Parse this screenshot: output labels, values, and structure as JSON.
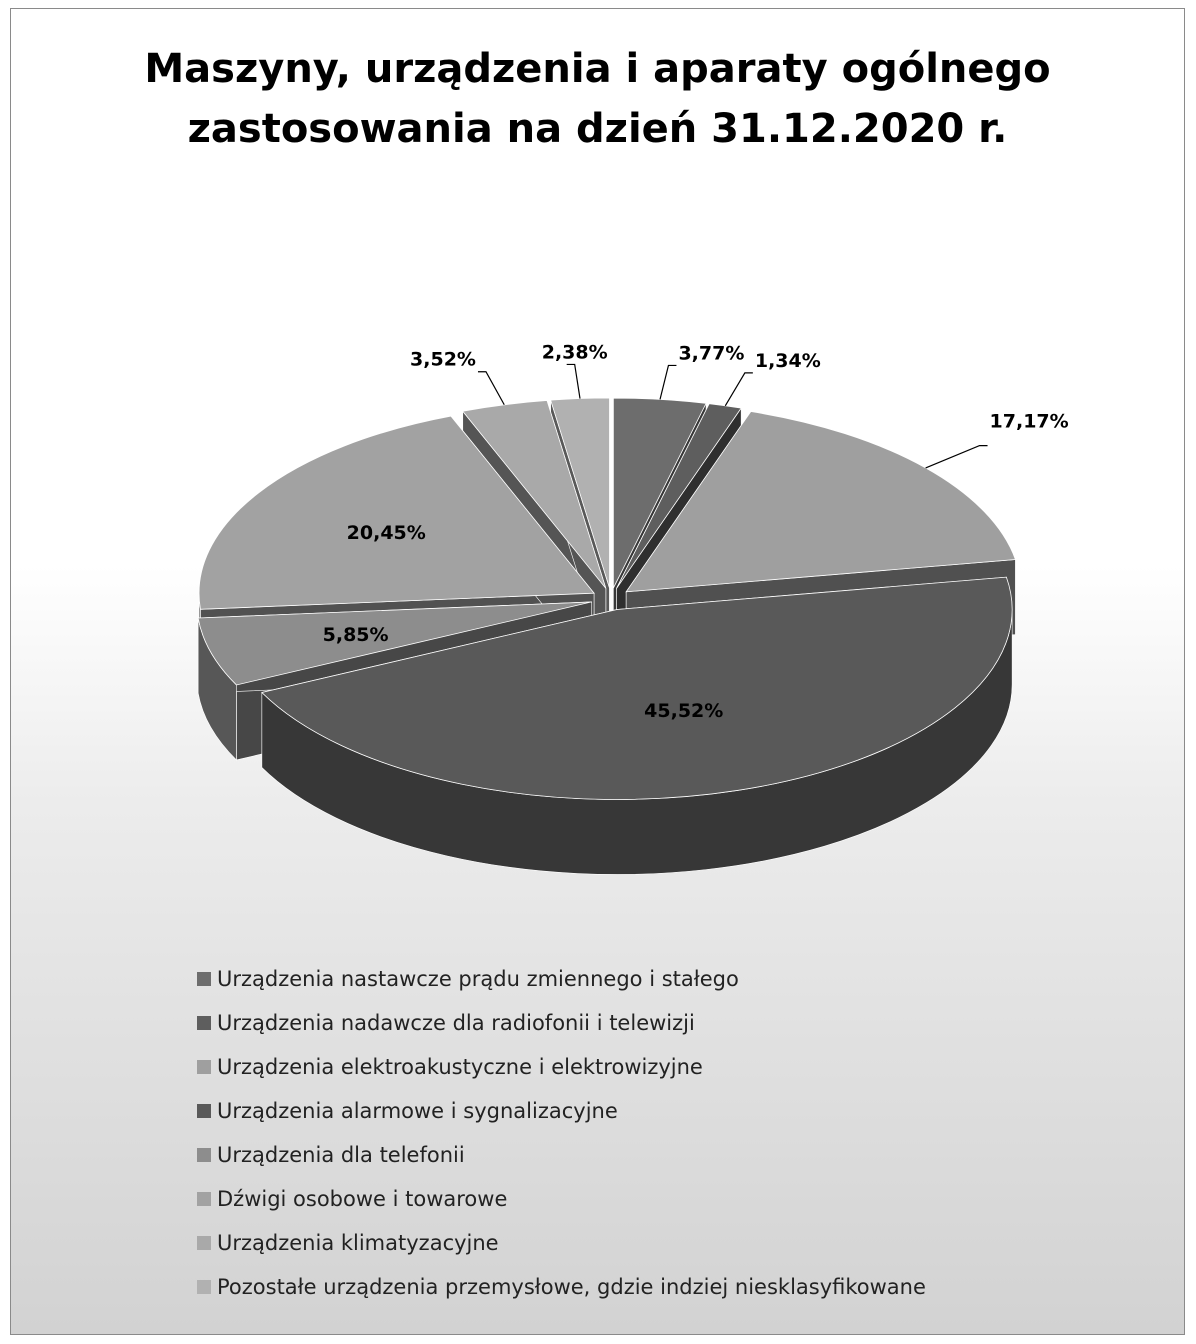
{
  "chart_data": {
    "type": "pie",
    "title": "Maszyny, urządzenia i aparaty ogólnego zastosowania na dzień 31.12.2020 r.",
    "title_lines": [
      "Maszyny, urządzenia i aparaty ogólnego",
      "zastosowania na dzień 31.12.2020 r."
    ],
    "legend_position": "bottom",
    "three_d": true,
    "exploded": true,
    "slices": [
      {
        "name": "Urządzenia nastawcze prądu zmiennego i stałego",
        "value": 3.77,
        "label": "3,77%",
        "color": "#6d6d6d"
      },
      {
        "name": "Urządzenia nadawcze dla radiofonii i telewizji",
        "value": 1.34,
        "label": "1,34%",
        "color": "#5e5e5e"
      },
      {
        "name": "Urządzenia elektroakustyczne i elektrowizyjne",
        "value": 17.17,
        "label": "17,17%",
        "color": "#9f9f9f"
      },
      {
        "name": "Urządzenia alarmowe i sygnalizacyjne",
        "value": 45.52,
        "label": "45,52%",
        "color": "#595959"
      },
      {
        "name": "Urządzenia dla telefonii",
        "value": 5.85,
        "label": "5,85%",
        "color": "#8d8d8d"
      },
      {
        "name": "Dźwigi osobowe i towarowe",
        "value": 20.45,
        "label": "20,45%",
        "color": "#a2a2a2"
      },
      {
        "name": "Urządzenia klimatyzacyjne",
        "value": 3.52,
        "label": "3,52%",
        "color": "#a9a9a9"
      },
      {
        "name": "Pozostałe urządzenia przemysłowe, gdzie indziej niesklasyfikowane",
        "value": 2.38,
        "label": "2,38%",
        "color": "#b1b1b1"
      }
    ]
  }
}
